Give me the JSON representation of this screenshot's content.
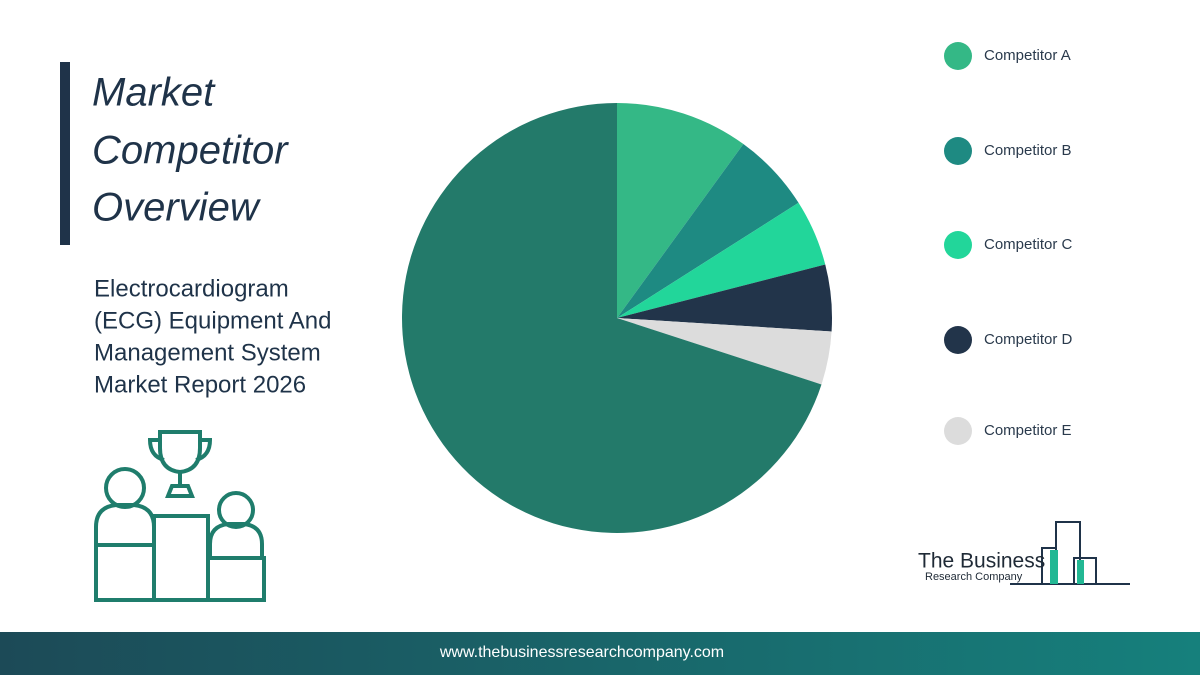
{
  "chart_data": {
    "type": "pie",
    "title": [
      "Market",
      "Competitor",
      "Overview"
    ],
    "subtitle": [
      "Electrocardiogram",
      "(ECG) Equipment And",
      "Management System",
      "Market Report 2026"
    ],
    "categories": [
      "Competitor A",
      "Competitor B",
      "Competitor C",
      "Competitor D",
      "Competitor E",
      null
    ],
    "values": [
      10,
      6,
      5,
      5,
      4,
      70
    ],
    "colors": [
      "#34b886",
      "#1e8a82",
      "#22d69a",
      "#22344a",
      "#dcdcdc",
      "#237a6a"
    ],
    "legend": "right"
  },
  "logo": {
    "name": "The Business",
    "tagline": "Research Company"
  },
  "footer": {
    "url": "www.thebusinessresearchcompany.com"
  }
}
